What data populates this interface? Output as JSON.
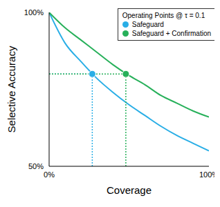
{
  "chart_data": {
    "type": "line",
    "x": [
      0,
      10,
      20,
      30,
      40,
      50,
      60,
      70,
      80,
      90,
      100
    ],
    "series": [
      {
        "name": "Safeguard",
        "color": "#29aee6",
        "values": [
          100,
          90,
          84,
          78.5,
          74,
          70,
          66.5,
          63,
          60,
          57.5,
          55
        ]
      },
      {
        "name": "Safeguard + Confirmation",
        "color": "#27b05a",
        "values": [
          100,
          95,
          91,
          87,
          83,
          79.5,
          76.5,
          73,
          70.5,
          68,
          66
        ]
      }
    ],
    "xlabel": "Coverage",
    "ylabel": "Selective Accuracy",
    "xlim": [
      0,
      100
    ],
    "ylim": [
      50,
      100
    ],
    "xticks": [
      {
        "value": 0,
        "label": "0%"
      },
      {
        "value": 100,
        "label": "100%"
      }
    ],
    "yticks": [
      {
        "value": 50,
        "label": "50%"
      },
      {
        "value": 100,
        "label": "100%"
      }
    ],
    "legend": "upper right",
    "legend_title": "Operating Points @ τ = 0.1",
    "operating_points": [
      {
        "name": "Safeguard",
        "x": 27,
        "y": 80
      },
      {
        "name": "Safeguard + Confirmation",
        "x": 48,
        "y": 80
      }
    ],
    "grid": false
  }
}
